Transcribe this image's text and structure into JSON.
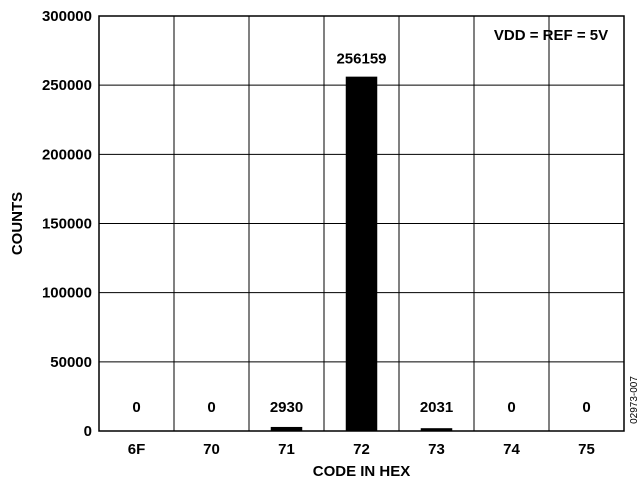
{
  "chart_data": {
    "type": "bar",
    "categories": [
      "6F",
      "70",
      "71",
      "72",
      "73",
      "74",
      "75"
    ],
    "values": [
      0,
      0,
      2930,
      256159,
      2031,
      0,
      0
    ],
    "data_labels": [
      "0",
      "0",
      "2930",
      "256159",
      "2031",
      "0",
      "0"
    ],
    "xlabel": "CODE IN HEX",
    "ylabel": "COUNTS",
    "ylim": [
      0,
      300000
    ],
    "yticks": [
      "0",
      "50000",
      "100000",
      "150000",
      "200000",
      "250000",
      "300000"
    ],
    "grid": true,
    "annotation": "VDD = REF = 5V",
    "figure_id": "02973-007",
    "bar_color": "#000000"
  }
}
